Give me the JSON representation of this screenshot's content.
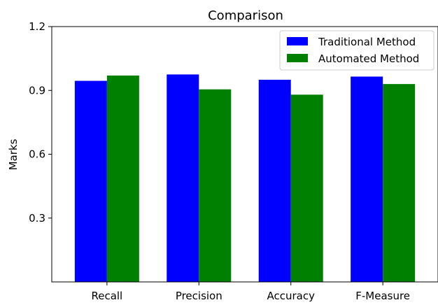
{
  "chart_data": {
    "type": "bar",
    "title": "Comparison",
    "xlabel": "",
    "ylabel": "Marks",
    "categories": [
      "Recall",
      "Precision",
      "Accuracy",
      "F-Measure"
    ],
    "series": [
      {
        "name": "Traditional Method",
        "color": "#0000ff",
        "values": [
          0.945,
          0.975,
          0.95,
          0.965
        ]
      },
      {
        "name": "Automated Method",
        "color": "#008000",
        "values": [
          0.97,
          0.905,
          0.88,
          0.93
        ]
      }
    ],
    "ylim": [
      0,
      1.2
    ],
    "yticks": [
      0.3,
      0.6,
      0.9
    ],
    "yticklabels": [
      "0.3",
      "0.6",
      "0.9"
    ],
    "ymax_label": "1.2",
    "legend_position": "top-right",
    "grid": false
  }
}
